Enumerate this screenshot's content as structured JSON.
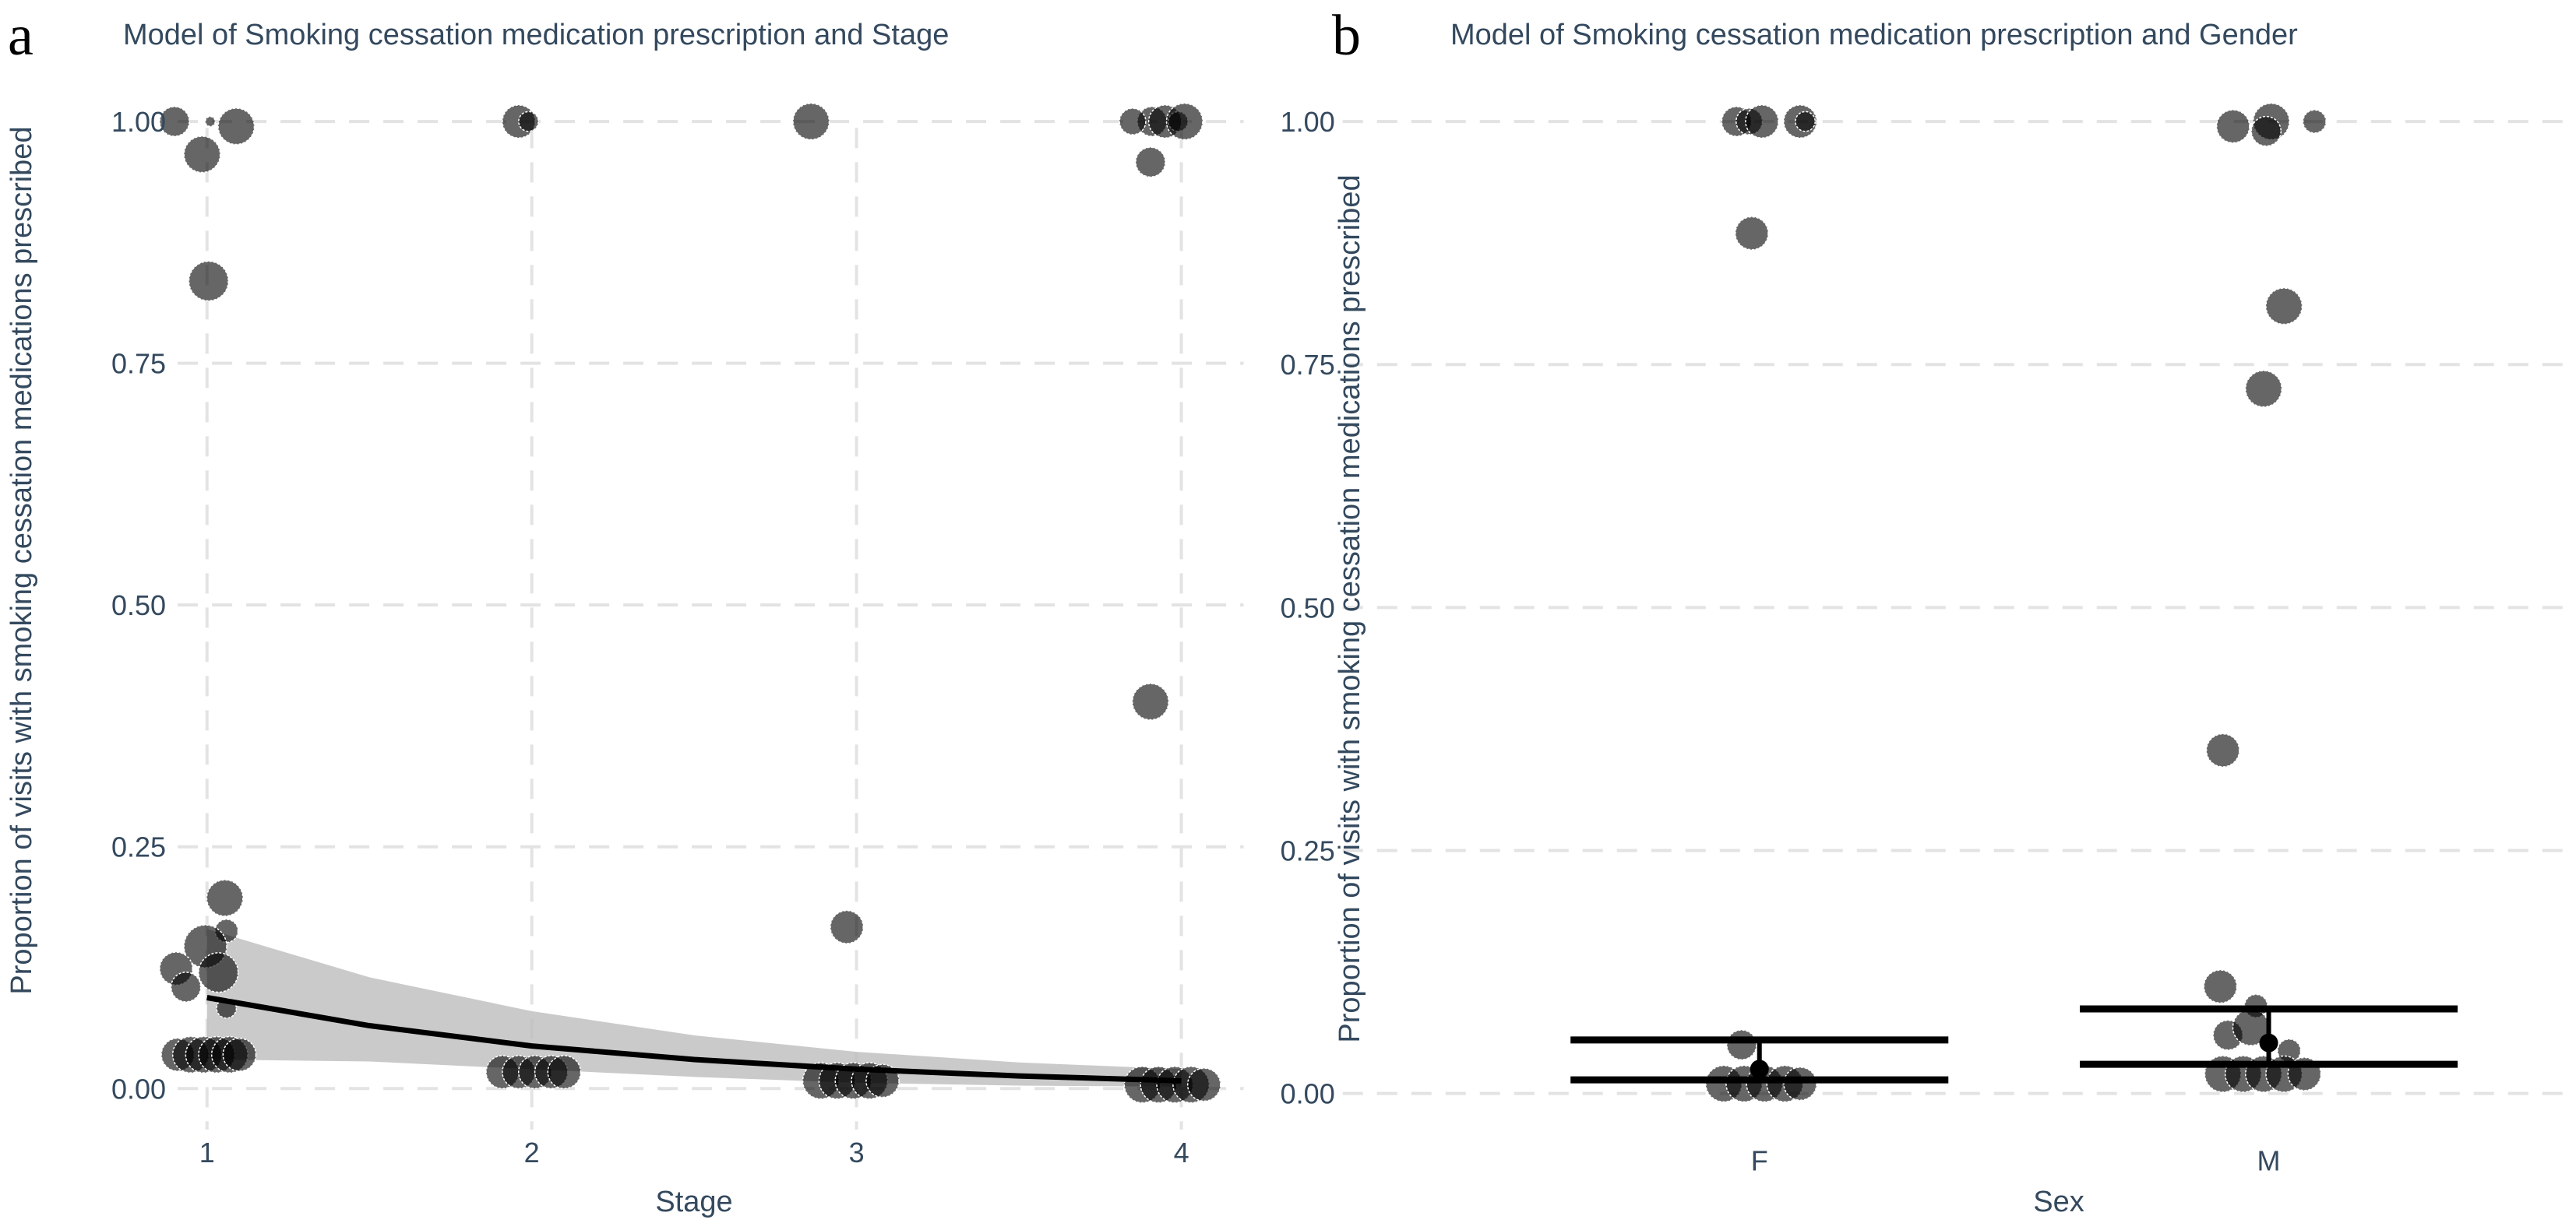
{
  "chart_data": [
    {
      "panel": "a",
      "type": "scatter",
      "title": "Model of Smoking cessation medication prescription and Stage",
      "xlabel": "Stage",
      "ylabel": "Proportion of visits with smoking cessation medications prescribed",
      "xlim": [
        0.8,
        4.2
      ],
      "ylim": [
        -0.03,
        1.04
      ],
      "x_ticks": [
        "1",
        "2",
        "3",
        "4"
      ],
      "x_tick_values": [
        1,
        2,
        3,
        4
      ],
      "y_ticks": [
        "0.00",
        "0.25",
        "0.50",
        "0.75",
        "1.00"
      ],
      "y_tick_values": [
        0,
        0.25,
        0.5,
        0.75,
        1.0
      ],
      "grid": true,
      "points": [
        {
          "x": 0.9,
          "y": 1.0,
          "size": 9
        },
        {
          "x": 1.01,
          "y": 1.0,
          "size": 3
        },
        {
          "x": 1.09,
          "y": 0.995,
          "size": 11
        },
        {
          "x": 0.985,
          "y": 0.966,
          "size": 11
        },
        {
          "x": 1.005,
          "y": 0.835,
          "size": 12
        },
        {
          "x": 1.055,
          "y": 0.197,
          "size": 11
        },
        {
          "x": 1.06,
          "y": 0.163,
          "size": 7
        },
        {
          "x": 0.995,
          "y": 0.147,
          "size": 13
        },
        {
          "x": 0.905,
          "y": 0.124,
          "size": 10
        },
        {
          "x": 1.035,
          "y": 0.12,
          "size": 12
        },
        {
          "x": 0.935,
          "y": 0.105,
          "size": 9
        },
        {
          "x": 1.06,
          "y": 0.083,
          "size": 6
        },
        {
          "x": 0.91,
          "y": 0.035,
          "size": 10
        },
        {
          "x": 0.95,
          "y": 0.035,
          "size": 11
        },
        {
          "x": 0.99,
          "y": 0.035,
          "size": 11
        },
        {
          "x": 1.03,
          "y": 0.035,
          "size": 11
        },
        {
          "x": 1.07,
          "y": 0.035,
          "size": 11
        },
        {
          "x": 1.1,
          "y": 0.035,
          "size": 10
        },
        {
          "x": 1.96,
          "y": 1.0,
          "size": 10
        },
        {
          "x": 1.99,
          "y": 1.0,
          "size": 6
        },
        {
          "x": 1.91,
          "y": 0.017,
          "size": 10
        },
        {
          "x": 1.96,
          "y": 0.017,
          "size": 10
        },
        {
          "x": 2.01,
          "y": 0.017,
          "size": 10
        },
        {
          "x": 2.06,
          "y": 0.017,
          "size": 10
        },
        {
          "x": 2.1,
          "y": 0.017,
          "size": 10
        },
        {
          "x": 2.86,
          "y": 1.0,
          "size": 11
        },
        {
          "x": 2.97,
          "y": 0.167,
          "size": 10
        },
        {
          "x": 2.89,
          "y": 0.008,
          "size": 11
        },
        {
          "x": 2.94,
          "y": 0.008,
          "size": 11
        },
        {
          "x": 2.99,
          "y": 0.008,
          "size": 11
        },
        {
          "x": 3.04,
          "y": 0.008,
          "size": 11
        },
        {
          "x": 3.08,
          "y": 0.008,
          "size": 10
        },
        {
          "x": 3.91,
          "y": 1.0,
          "size": 9
        },
        {
          "x": 3.95,
          "y": 1.0,
          "size": 10
        },
        {
          "x": 3.99,
          "y": 1.0,
          "size": 6
        },
        {
          "x": 4.01,
          "y": 1.0,
          "size": 11
        },
        {
          "x": 3.85,
          "y": 1.0,
          "size": 8
        },
        {
          "x": 3.905,
          "y": 0.958,
          "size": 9
        },
        {
          "x": 3.905,
          "y": 0.4,
          "size": 11
        },
        {
          "x": 3.88,
          "y": 0.004,
          "size": 11
        },
        {
          "x": 3.93,
          "y": 0.004,
          "size": 11
        },
        {
          "x": 3.98,
          "y": 0.004,
          "size": 11
        },
        {
          "x": 4.03,
          "y": 0.004,
          "size": 11
        },
        {
          "x": 4.07,
          "y": 0.004,
          "size": 10
        }
      ],
      "fit_line": {
        "x": [
          1,
          1.5,
          2,
          2.5,
          3,
          3.5,
          4
        ],
        "y": [
          0.094,
          0.065,
          0.044,
          0.03,
          0.02,
          0.013,
          0.008
        ]
      },
      "ribbon": {
        "x": [
          1,
          1.5,
          2,
          2.5,
          3,
          3.5,
          4
        ],
        "lower": [
          0.03,
          0.028,
          0.02,
          0.012,
          0.006,
          0.003,
          0.002
        ],
        "upper": [
          0.165,
          0.115,
          0.08,
          0.055,
          0.038,
          0.027,
          0.02
        ]
      }
    },
    {
      "panel": "b",
      "type": "scatter",
      "title": "Model of Smoking cessation medication prescription and Gender",
      "xlabel": "Sex",
      "ylabel": "Proportion of visits with smoking cessation medications prescribed",
      "categories": [
        "F",
        "M"
      ],
      "ylim": [
        -0.03,
        1.04
      ],
      "y_ticks": [
        "0.00",
        "0.25",
        "0.50",
        "0.75",
        "1.00"
      ],
      "y_tick_values": [
        0,
        0.25,
        0.5,
        0.75,
        1.0
      ],
      "grid": true,
      "points": [
        {
          "cat": "F",
          "dx": -0.045,
          "y": 1.0,
          "size": 9
        },
        {
          "cat": "F",
          "dx": -0.02,
          "y": 1.0,
          "size": 8
        },
        {
          "cat": "F",
          "dx": 0.005,
          "y": 1.0,
          "size": 10
        },
        {
          "cat": "F",
          "dx": 0.08,
          "y": 1.0,
          "size": 10
        },
        {
          "cat": "F",
          "dx": 0.09,
          "y": 1.0,
          "size": 6
        },
        {
          "cat": "F",
          "dx": -0.015,
          "y": 0.885,
          "size": 10
        },
        {
          "cat": "F",
          "dx": -0.035,
          "y": 0.05,
          "size": 9
        },
        {
          "cat": "F",
          "dx": -0.07,
          "y": 0.01,
          "size": 11
        },
        {
          "cat": "F",
          "dx": -0.03,
          "y": 0.01,
          "size": 11
        },
        {
          "cat": "F",
          "dx": 0.01,
          "y": 0.01,
          "size": 11
        },
        {
          "cat": "F",
          "dx": 0.05,
          "y": 0.01,
          "size": 11
        },
        {
          "cat": "F",
          "dx": 0.08,
          "y": 0.01,
          "size": 10
        },
        {
          "cat": "M",
          "dx": -0.07,
          "y": 0.995,
          "size": 10
        },
        {
          "cat": "M",
          "dx": 0.005,
          "y": 1.0,
          "size": 11
        },
        {
          "cat": "M",
          "dx": -0.005,
          "y": 0.99,
          "size": 9
        },
        {
          "cat": "M",
          "dx": 0.09,
          "y": 1.0,
          "size": 7
        },
        {
          "cat": "M",
          "dx": 0.03,
          "y": 0.81,
          "size": 11
        },
        {
          "cat": "M",
          "dx": -0.01,
          "y": 0.725,
          "size": 11
        },
        {
          "cat": "M",
          "dx": -0.09,
          "y": 0.353,
          "size": 10
        },
        {
          "cat": "M",
          "dx": -0.095,
          "y": 0.11,
          "size": 10
        },
        {
          "cat": "M",
          "dx": -0.025,
          "y": 0.09,
          "size": 7
        },
        {
          "cat": "M",
          "dx": -0.08,
          "y": 0.06,
          "size": 9
        },
        {
          "cat": "M",
          "dx": -0.035,
          "y": 0.068,
          "size": 11
        },
        {
          "cat": "M",
          "dx": 0.04,
          "y": 0.044,
          "size": 7
        },
        {
          "cat": "M",
          "dx": -0.09,
          "y": 0.02,
          "size": 11
        },
        {
          "cat": "M",
          "dx": -0.05,
          "y": 0.02,
          "size": 11
        },
        {
          "cat": "M",
          "dx": -0.01,
          "y": 0.02,
          "size": 11
        },
        {
          "cat": "M",
          "dx": 0.03,
          "y": 0.02,
          "size": 11
        },
        {
          "cat": "M",
          "dx": 0.07,
          "y": 0.02,
          "size": 10
        }
      ],
      "estimates": [
        {
          "cat": "F",
          "estimate": 0.025,
          "lower": 0.014,
          "upper": 0.055
        },
        {
          "cat": "M",
          "estimate": 0.052,
          "lower": 0.03,
          "upper": 0.087
        }
      ]
    }
  ],
  "labels": {
    "panel_a": "a",
    "panel_b": "b"
  }
}
